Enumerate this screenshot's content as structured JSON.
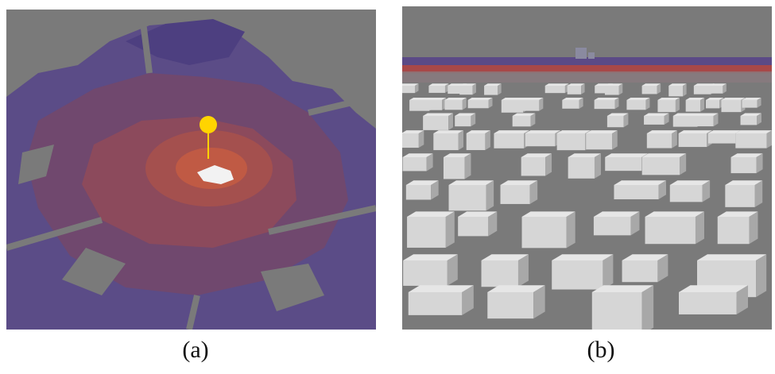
{
  "figure": {
    "panels": [
      {
        "id": "a",
        "caption": "(a)",
        "content": "aerial-city-heatmap"
      },
      {
        "id": "b",
        "caption": "(b)",
        "content": "street-level-3d-buildings"
      }
    ]
  },
  "colors": {
    "background_gray": "#7a7a7a",
    "outer_zone_purple": "#5b4a86",
    "mid_zone_purple_red": "#7a4a6a",
    "inner_zone_red": "#a24a4a",
    "core_zone_orange": "#c2553c",
    "marker_yellow": "#ffd400",
    "building_light": "#d6d6d6",
    "building_shadow": "#a8a8a8"
  },
  "icons": {
    "marker": "location-pin-icon"
  }
}
